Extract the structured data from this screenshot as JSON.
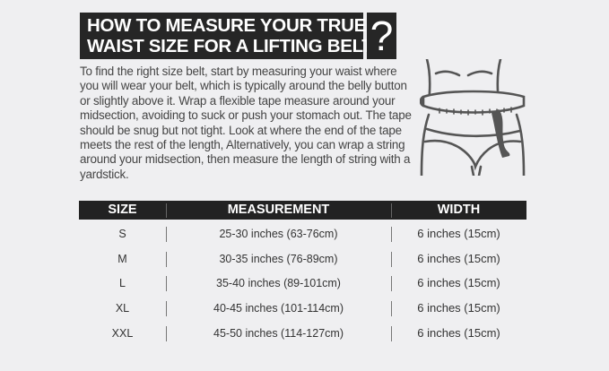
{
  "title": {
    "line1": "HOW TO MEASURE YOUR TRUE",
    "line2": "WAIST SIZE FOR A LIFTING BELT",
    "question_mark": "?"
  },
  "instructions": "To find the right size belt, start by measuring your waist where you will wear your belt, which is typically around the belly button or slightly above it. Wrap a flexible tape measure around your midsection, avoiding to suck or push your stomach out. The tape should be snug but not tight. Look at where the end of the tape meets the rest of the length, Alternatively, you can wrap a string around your midsection, then measure the length of string with a yardstick.",
  "illustration": "waist-measuring-tape-icon",
  "table": {
    "headers": [
      "SIZE",
      "MEASUREMENT",
      "WIDTH"
    ],
    "rows": [
      [
        "S",
        "25-30 inches (63-76cm)",
        "6 inches (15cm)"
      ],
      [
        "M",
        "30-35 inches (76-89cm)",
        "6 inches (15cm)"
      ],
      [
        "L",
        "35-40 inches (89-101cm)",
        "6 inches (15cm)"
      ],
      [
        "XL",
        "40-45 inches (101-114cm)",
        "6 inches (15cm)"
      ],
      [
        "XXL",
        "45-50 inches (114-127cm)",
        "6 inches (15cm)"
      ]
    ]
  },
  "colors": {
    "background": "#efeff1",
    "header": "#262626",
    "line_art": "#555555"
  }
}
